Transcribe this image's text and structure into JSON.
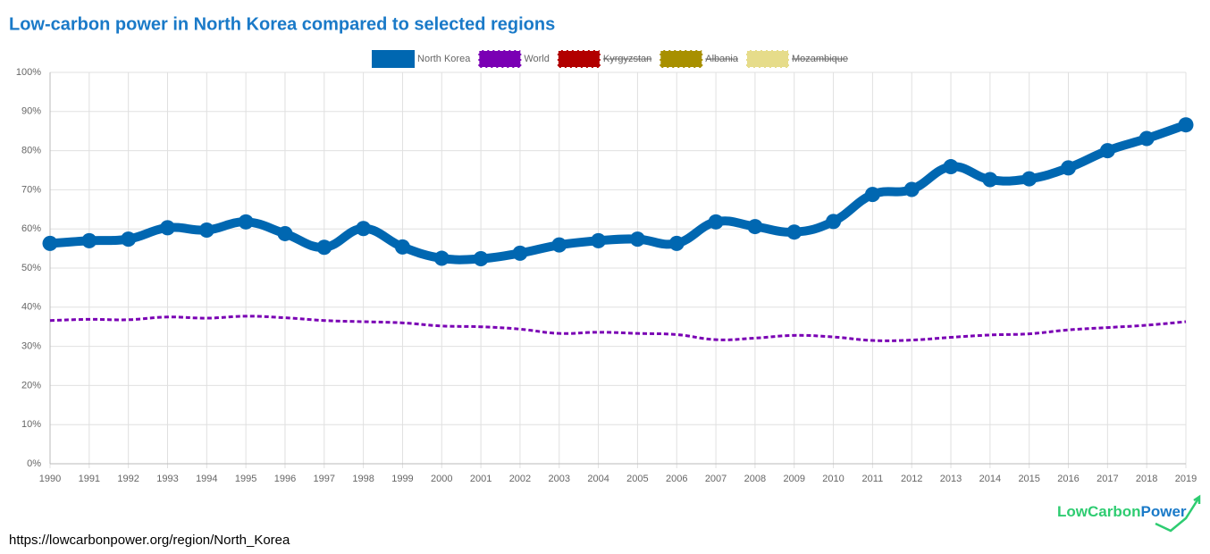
{
  "chart_data": {
    "type": "line",
    "title": "Low-carbon power in North Korea compared to selected regions",
    "categories": [
      "1990",
      "1991",
      "1992",
      "1993",
      "1994",
      "1995",
      "1996",
      "1997",
      "1998",
      "1999",
      "2000",
      "2001",
      "2002",
      "2003",
      "2004",
      "2005",
      "2006",
      "2007",
      "2008",
      "2009",
      "2010",
      "2011",
      "2012",
      "2013",
      "2014",
      "2015",
      "2016",
      "2017",
      "2018",
      "2019"
    ],
    "series": [
      {
        "name": "North Korea",
        "color": "#0067b1",
        "values": [
          56.3,
          57,
          57.4,
          60.3,
          59.7,
          61.8,
          58.8,
          55.3,
          60.1,
          55.4,
          52.5,
          52.4,
          53.8,
          55.9,
          57,
          57.4,
          56.3,
          61.8,
          60.6,
          59.2,
          61.9,
          68.8,
          70.1,
          75.9,
          72.6,
          72.8,
          75.6,
          80,
          83.1,
          86.6
        ]
      },
      {
        "name": "World",
        "color": "#7a00b4",
        "values": [
          36.6,
          36.9,
          36.8,
          37.5,
          37.2,
          37.7,
          37.3,
          36.6,
          36.3,
          36.0,
          35.2,
          35.0,
          34.4,
          33.3,
          33.6,
          33.3,
          33.0,
          31.7,
          32.1,
          32.8,
          32.4,
          31.5,
          31.6,
          32.3,
          32.9,
          33.2,
          34.2,
          34.8,
          35.4,
          36.3
        ]
      },
      {
        "name": "Kyrgyzstan",
        "color": "#b20000",
        "hidden": true
      },
      {
        "name": "Albania",
        "color": "#a89000",
        "hidden": true
      },
      {
        "name": "Mozambique",
        "color": "#e6dc8a",
        "hidden": true
      }
    ],
    "ylim": [
      0,
      100
    ],
    "yticks": [
      {
        "value": 0,
        "label": "0%"
      },
      {
        "value": 10,
        "label": "10%"
      },
      {
        "value": 20,
        "label": "20%"
      },
      {
        "value": 30,
        "label": "30%"
      },
      {
        "value": 40,
        "label": "40%"
      },
      {
        "value": 50,
        "label": "50%"
      },
      {
        "value": 60,
        "label": "60%"
      },
      {
        "value": 70,
        "label": "70%"
      },
      {
        "value": 80,
        "label": "80%"
      },
      {
        "value": 90,
        "label": "90%"
      },
      {
        "value": 100,
        "label": "100%"
      }
    ],
    "grid": true,
    "legend": "top"
  },
  "footer": {
    "url": "https://lowcarbonpower.org/region/North_Korea",
    "logo_left": "LowCarbon",
    "logo_right": "Power"
  }
}
